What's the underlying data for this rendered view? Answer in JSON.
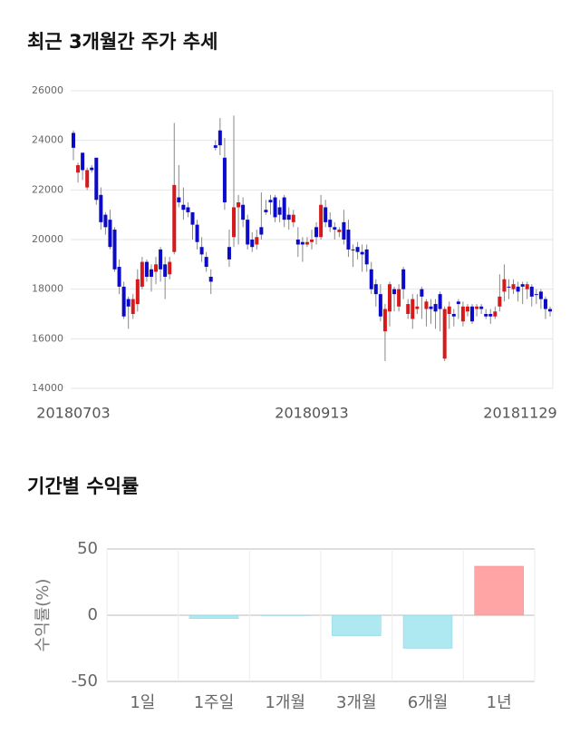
{
  "chart_data": [
    {
      "type": "candlestick",
      "title": "최근 3개월간 주가 추세",
      "categories": [
        "20180703",
        null,
        null,
        null,
        null,
        null,
        null,
        null,
        null,
        null,
        null,
        null,
        null,
        null,
        null,
        null,
        null,
        null,
        null,
        null,
        null,
        null,
        null,
        null,
        null,
        null,
        null,
        null,
        null,
        null,
        null,
        null,
        null,
        null,
        null,
        null,
        null,
        null,
        null,
        null,
        null,
        null,
        null,
        null,
        null,
        null,
        null,
        null,
        null,
        null,
        null,
        null,
        "20180913",
        null,
        null,
        null,
        null,
        null,
        null,
        null,
        null,
        null,
        null,
        null,
        null,
        null,
        null,
        null,
        null,
        null,
        null,
        null,
        null,
        null,
        null,
        null,
        null,
        null,
        null,
        null,
        null,
        null,
        null,
        null,
        null,
        null,
        null,
        null,
        null,
        null,
        null,
        null,
        null,
        null,
        null,
        null,
        null,
        null,
        null,
        null,
        null,
        null,
        null,
        null,
        "20181129"
      ],
      "open": [
        24300,
        22700,
        23500,
        22100,
        22900,
        23300,
        21800,
        21000,
        20800,
        20400,
        18900,
        18100,
        17600,
        17000,
        17400,
        18100,
        19100,
        18800,
        18700,
        19600,
        19000,
        18600,
        19500,
        21700,
        21400,
        21300,
        21100,
        20600,
        19700,
        19300,
        18500,
        23800,
        24400,
        23300,
        19700,
        20100,
        21300,
        21400,
        20800,
        20000,
        19800,
        20500,
        21200,
        21600,
        21700,
        21300,
        21700,
        21000,
        20700,
        20000,
        19900,
        19800,
        19900,
        20500,
        20100,
        21300,
        20800,
        20500,
        20300,
        20700,
        20400,
        19600,
        19700,
        19500,
        19600,
        18800,
        18200,
        17800,
        16300,
        17100,
        18000,
        17300,
        18800,
        17000,
        16800,
        17200,
        18000,
        17200,
        17300,
        17400,
        17800,
        15200,
        17000,
        17000,
        17500,
        16700,
        17100,
        17300,
        17200,
        17300,
        17000,
        17000,
        16900,
        17300,
        17900,
        18100,
        18000,
        18100,
        18200,
        18000,
        18100,
        17800,
        17900,
        17600,
        17200
      ],
      "high": [
        24400,
        23100,
        23500,
        22900,
        23000,
        23300,
        22100,
        21100,
        21200,
        20500,
        19200,
        18300,
        17700,
        17800,
        18800,
        19300,
        19200,
        19000,
        19300,
        19700,
        19300,
        19300,
        24700,
        23000,
        22100,
        21500,
        21100,
        20800,
        20100,
        19500,
        18800,
        24000,
        24900,
        24100,
        20400,
        25000,
        21800,
        21700,
        21000,
        20300,
        20400,
        21900,
        21600,
        21800,
        21800,
        21600,
        21800,
        21300,
        21200,
        20500,
        20100,
        20100,
        20400,
        20700,
        21800,
        21600,
        21100,
        20700,
        20500,
        21200,
        20800,
        19800,
        19900,
        19800,
        19800,
        19100,
        18400,
        18200,
        17400,
        18300,
        18100,
        18200,
        18900,
        17600,
        17800,
        17800,
        18100,
        17600,
        17600,
        17600,
        17900,
        17300,
        17500,
        17200,
        17600,
        17500,
        17400,
        17400,
        17400,
        17400,
        17200,
        17200,
        17300,
        18600,
        19000,
        18400,
        18400,
        18300,
        18300,
        18300,
        18200,
        18000,
        18000,
        17700,
        17300
      ],
      "low": [
        23200,
        22300,
        22400,
        22000,
        22700,
        21400,
        20400,
        20200,
        19600,
        18700,
        17800,
        16800,
        16400,
        16800,
        17100,
        18000,
        18300,
        17900,
        18200,
        18300,
        17600,
        18400,
        19400,
        21300,
        20800,
        20900,
        20000,
        19600,
        19100,
        18700,
        17800,
        23600,
        23400,
        21200,
        18900,
        19700,
        19800,
        20500,
        19600,
        19500,
        19600,
        20000,
        21000,
        21000,
        20700,
        20700,
        20500,
        20400,
        20500,
        19300,
        19100,
        19700,
        19600,
        19800,
        20000,
        20500,
        20300,
        20000,
        20100,
        19800,
        19300,
        18900,
        19200,
        18700,
        18700,
        17800,
        17300,
        16700,
        15100,
        16500,
        17100,
        17100,
        17600,
        16800,
        16400,
        17000,
        16800,
        16500,
        16600,
        16400,
        16300,
        15100,
        16400,
        16500,
        16800,
        16500,
        16900,
        16600,
        16900,
        17000,
        16800,
        16600,
        16800,
        17100,
        17500,
        17600,
        17800,
        17500,
        17400,
        17600,
        17300,
        17400,
        17200,
        16800,
        16900
      ],
      "close": [
        23700,
        23000,
        22800,
        22800,
        22800,
        21600,
        20700,
        20500,
        19700,
        18800,
        18100,
        16900,
        17300,
        17600,
        18400,
        19100,
        18500,
        18500,
        19000,
        18800,
        18500,
        19100,
        22200,
        21500,
        21200,
        21100,
        20600,
        19900,
        19400,
        18900,
        18300,
        23700,
        23800,
        21500,
        19200,
        21300,
        21500,
        20800,
        19800,
        19700,
        20100,
        20200,
        21100,
        21500,
        20900,
        21000,
        20800,
        20800,
        21000,
        19800,
        19800,
        19900,
        20000,
        20100,
        21400,
        20700,
        20500,
        20400,
        20400,
        20000,
        19600,
        19600,
        19500,
        19400,
        19000,
        18000,
        17800,
        16900,
        17200,
        18200,
        17800,
        18000,
        18000,
        17400,
        17600,
        17300,
        17700,
        17500,
        17200,
        17100,
        17200,
        17200,
        17300,
        16900,
        17400,
        17300,
        17300,
        16700,
        17300,
        17200,
        16900,
        16900,
        17100,
        17700,
        18400,
        18100,
        18200,
        17900,
        18100,
        18200,
        17700,
        17800,
        17600,
        17200,
        17100
      ],
      "up_color": "#d6191b",
      "down_color": "#0a0ac8",
      "ylim": [
        14000,
        26000
      ],
      "yticks": [
        14000,
        16000,
        18000,
        20000,
        22000,
        24000,
        26000
      ],
      "grid": true
    },
    {
      "type": "bar",
      "title": "기간별 수익률",
      "y_label": "수익률(%)",
      "categories": [
        "1일",
        "1주일",
        "1개월",
        "3개월",
        "6개월",
        "1년"
      ],
      "values": [
        0,
        -2.5,
        -0.3,
        -15.5,
        -25,
        37
      ],
      "positive_color": "#ffa5a5",
      "negative_color": "#aee9f2",
      "ylim": [
        -50,
        50
      ],
      "yticks": [
        50,
        0,
        -50
      ],
      "grid": true
    }
  ]
}
